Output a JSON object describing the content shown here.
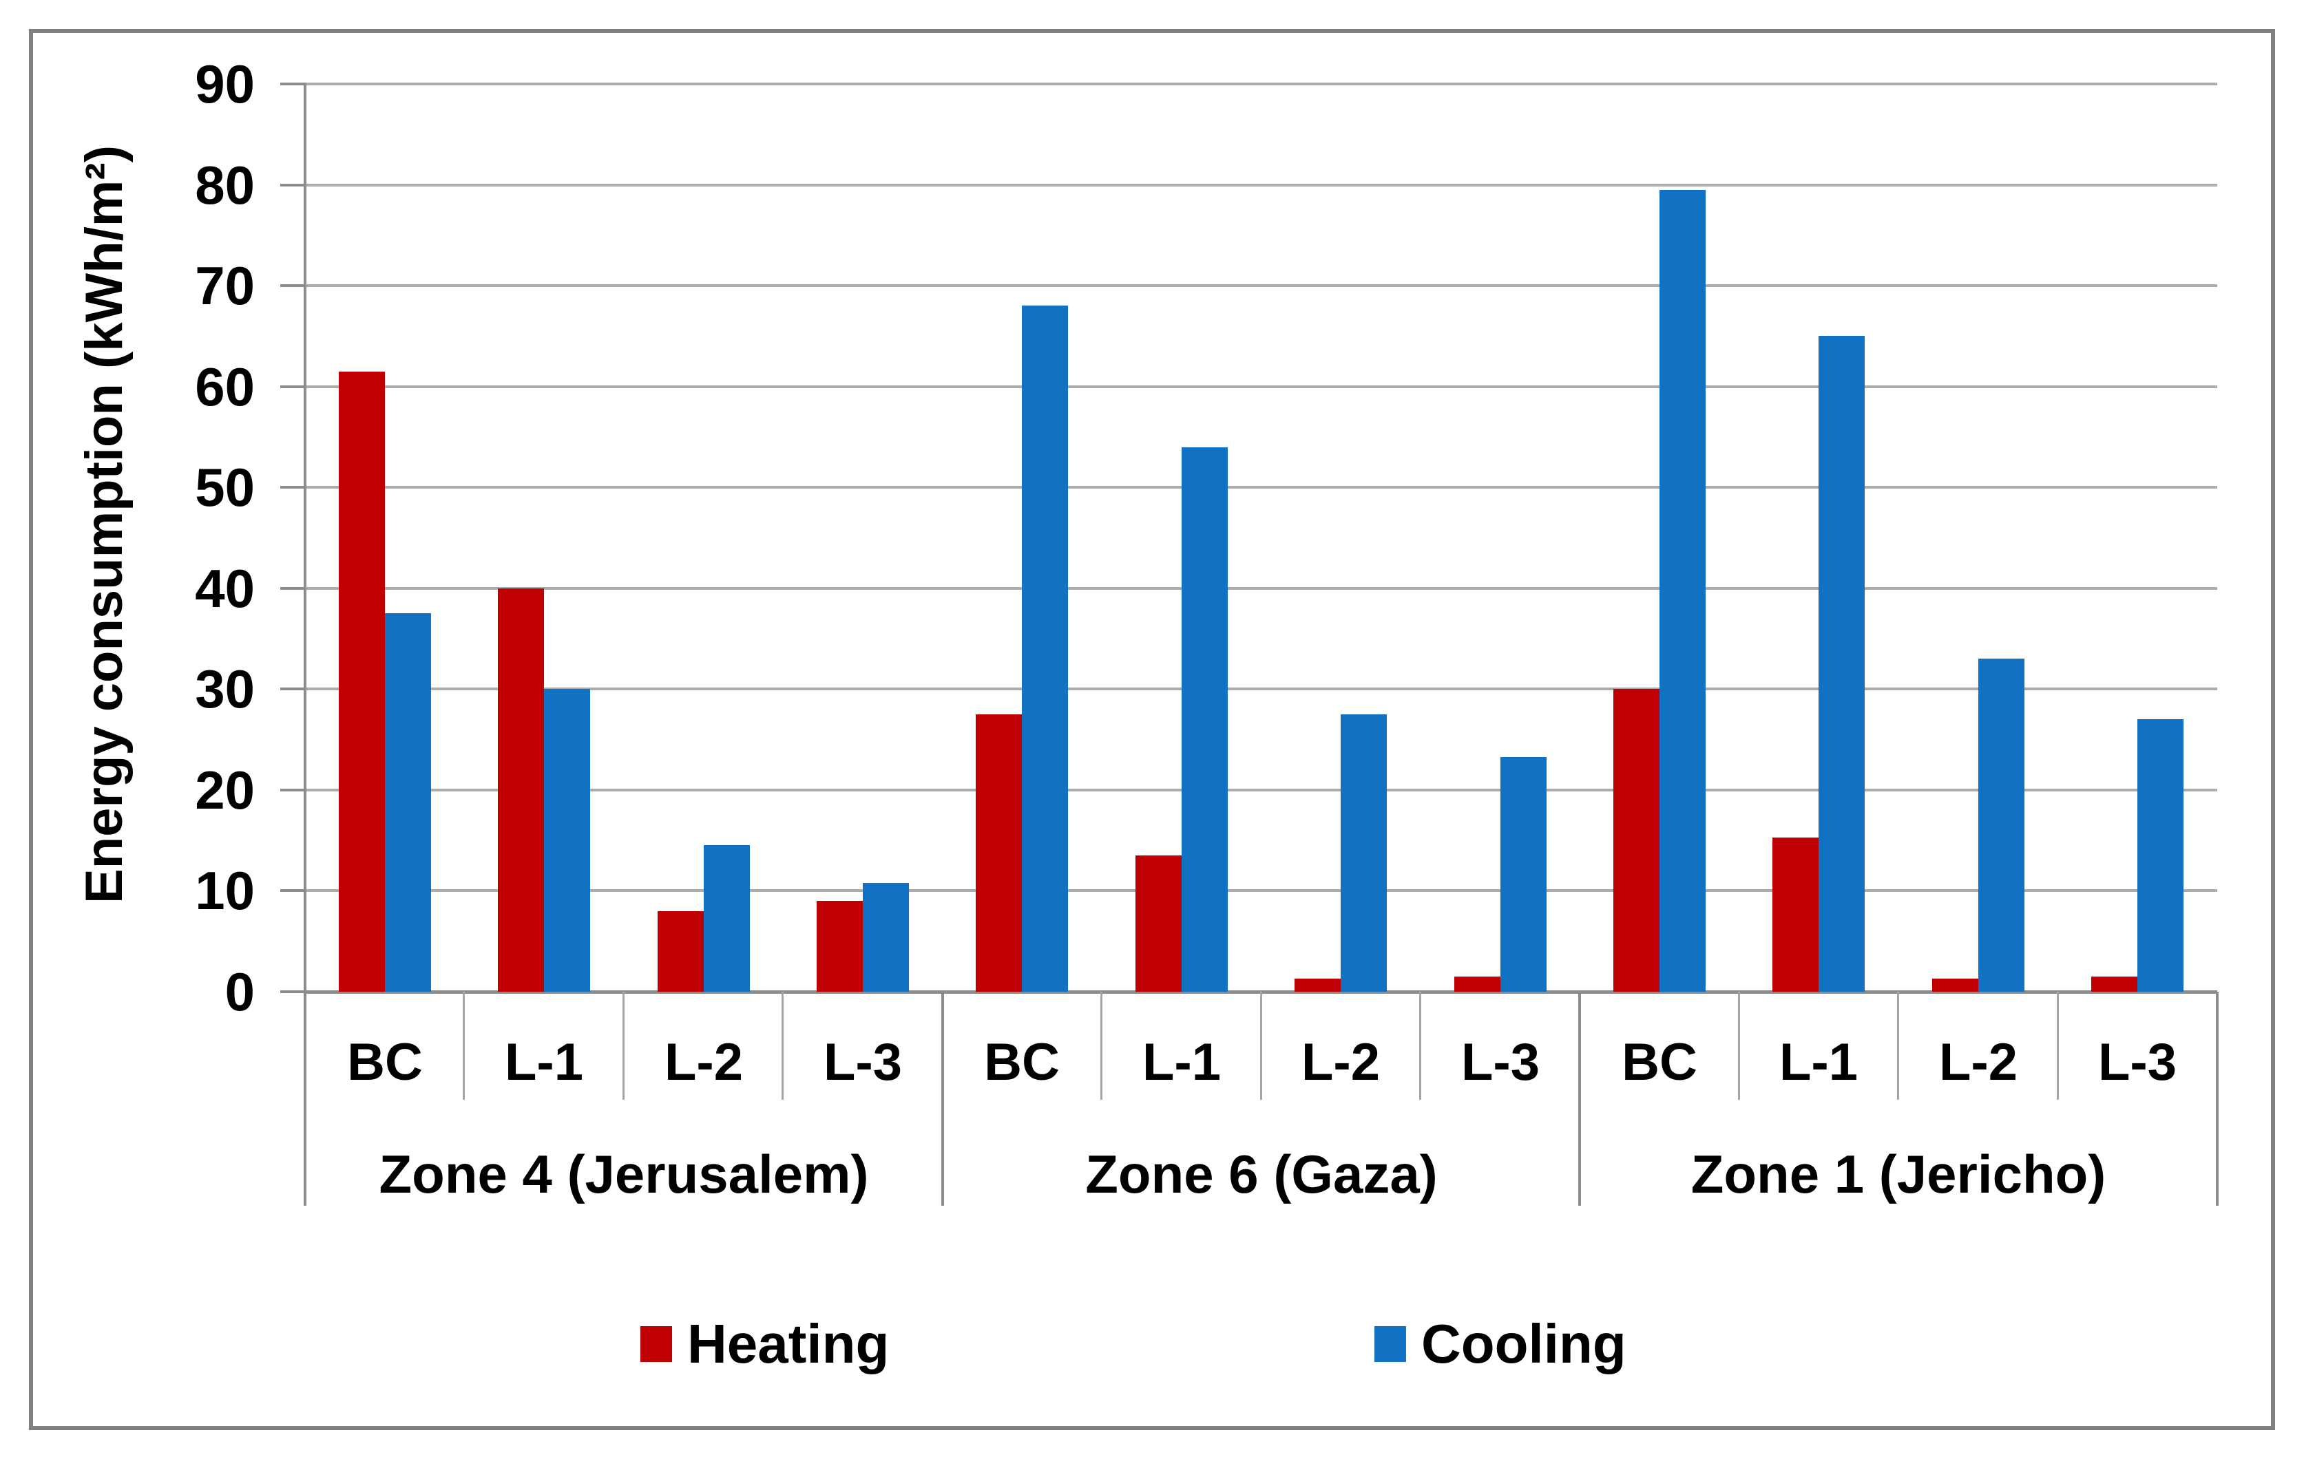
{
  "chart_data": {
    "type": "bar",
    "title": "",
    "ylabel": "Energy consumption (kWh/m²)",
    "ylim": [
      0,
      90
    ],
    "ytick_step": 10,
    "y_ticks": [
      0,
      10,
      20,
      30,
      40,
      50,
      60,
      70,
      80,
      90
    ],
    "grid": "horizontal gridlines every 10, light gray",
    "legend_position": "bottom center, outside plot",
    "categories_per_zone": [
      "BC",
      "L-1",
      "L-2",
      "L-3"
    ],
    "zones": [
      {
        "label": "Zone 4 (Jerusalem)"
      },
      {
        "label": "Zone 6 (Gaza)"
      },
      {
        "label": "Zone 1 (Jericho)"
      }
    ],
    "series": [
      {
        "name": "Heating",
        "color": "#C00000",
        "values_by_zone": [
          [
            61.5,
            40,
            8,
            9
          ],
          [
            27.5,
            13.5,
            1.3,
            1.5
          ],
          [
            30,
            15.3,
            1.3,
            1.5
          ]
        ]
      },
      {
        "name": "Cooling",
        "color": "#1172C3",
        "values_by_zone": [
          [
            37.5,
            30,
            14.5,
            10.8
          ],
          [
            68,
            54,
            27.5,
            23.3
          ],
          [
            79.5,
            65,
            33,
            27
          ]
        ]
      }
    ]
  },
  "styles": {
    "gridline_color": "#ACACAC",
    "axis_color": "#8C8C8C",
    "separator_color": "#A6A6A6",
    "frame_color": "#808080",
    "text_color": "#000000",
    "background": "#FFFFFF"
  }
}
